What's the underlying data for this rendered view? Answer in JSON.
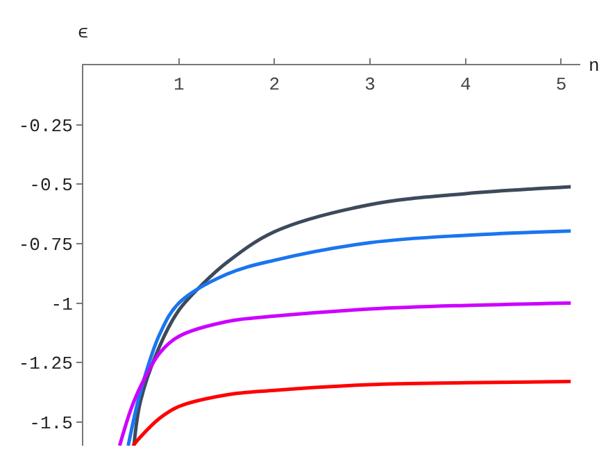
{
  "chart_data": {
    "type": "line",
    "xlabel": "n",
    "ylabel": "ϵ",
    "xlim": [
      0,
      5.2
    ],
    "ylim": [
      -1.6,
      0
    ],
    "xticks": [
      1,
      2,
      3,
      4,
      5
    ],
    "yticks": [
      -1.5,
      -1.25,
      -1,
      -0.75,
      -0.5,
      -0.25
    ],
    "grid": false,
    "marker": "none",
    "line_style": "solid",
    "series": [
      {
        "color": "#3d4a5c",
        "x": [
          0.53,
          0.6,
          0.8,
          1,
          1.25,
          1.5,
          2,
          3,
          4,
          5.1
        ],
        "values": [
          -1.6,
          -1.41,
          -1.18,
          -1.03,
          -0.92,
          -0.83,
          -0.7,
          -0.586,
          -0.54,
          -0.511
        ]
      },
      {
        "color": "#1a75f0",
        "x": [
          0.47,
          0.6,
          0.8,
          1,
          1.5,
          2,
          3,
          4,
          5.1
        ],
        "values": [
          -1.6,
          -1.37,
          -1.13,
          -1.0,
          -0.879,
          -0.82,
          -0.746,
          -0.715,
          -0.697
        ]
      },
      {
        "color": "#cc00ff",
        "x": [
          0.38,
          0.5,
          0.6,
          0.8,
          1,
          1.5,
          2,
          3,
          4,
          5.1
        ],
        "values": [
          -1.6,
          -1.445,
          -1.35,
          -1.21,
          -1.14,
          -1.078,
          -1.055,
          -1.025,
          -1.01,
          -1.0
        ]
      },
      {
        "color": "#ff0000",
        "x": [
          0.52,
          0.6,
          0.8,
          1,
          1.5,
          2,
          3,
          4,
          5.1
        ],
        "values": [
          -1.6,
          -1.562,
          -1.484,
          -1.435,
          -1.386,
          -1.367,
          -1.343,
          -1.335,
          -1.33
        ]
      }
    ]
  }
}
